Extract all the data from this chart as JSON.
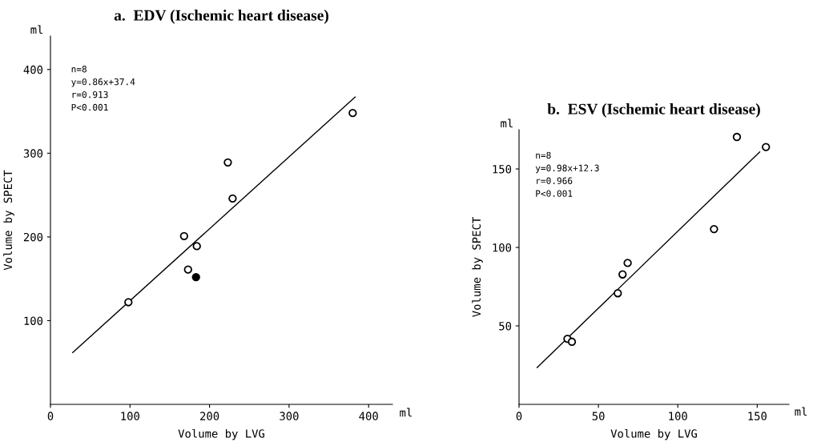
{
  "chart_data": [
    {
      "type": "scatter",
      "title": "a.  EDV (Ischemic heart disease)",
      "xlabel": "Volume by LVG",
      "ylabel": "Volume by SPECT",
      "annotations": [
        "n=8\ny=0.86x+37.4\nr=0.913\nP<0.001",
        "ml",
        "ml"
      ],
      "x": [
        98,
        168,
        184,
        173,
        183,
        223,
        229,
        380
      ],
      "series": [
        {
          "color": "#000000",
          "colors": [
            "#ffffff",
            "#ffffff",
            "#ffffff",
            "#ffffff",
            "#000000",
            "#ffffff",
            "#ffffff",
            "#ffffff"
          ],
          "values": [
            122,
            201,
            189,
            161,
            152,
            289,
            246,
            348
          ]
        },
        {
          "type": "line",
          "marker": "none",
          "color": "#000000",
          "x": [
            28,
            383
          ],
          "values": [
            62,
            367
          ]
        }
      ],
      "xlim": [
        0,
        430
      ],
      "ylim": [
        0,
        440
      ],
      "xticks": [
        0,
        100,
        200,
        300,
        400
      ],
      "yticks": [
        100,
        200,
        300,
        400
      ],
      "marker": "circle",
      "grid": false,
      "legend": false
    },
    {
      "type": "scatter",
      "title": "b.  ESV (Ischemic heart disease)",
      "xlabel": "Volume by LVG",
      "ylabel": "Volume by SPECT",
      "annotations": [
        "n=8\ny=0.98x+12.3\nr=0.966\nP<0.001",
        "ml",
        "ml"
      ],
      "x": [
        30.5,
        33.3,
        62.2,
        65.2,
        68.4,
        122.8,
        137.2,
        155.5
      ],
      "series": [
        {
          "color": "#000000",
          "colors": [
            "#ffffff",
            "#ffffff",
            "#ffffff",
            "#ffffff",
            "#ffffff",
            "#ffffff",
            "#ffffff",
            "#ffffff"
          ],
          "values": [
            41.8,
            39.9,
            70.8,
            82.8,
            90.1,
            111.7,
            170.4,
            164
          ]
        },
        {
          "type": "line",
          "marker": "none",
          "color": "#000000",
          "x": [
            11.4,
            151.6
          ],
          "values": [
            23.5,
            160.9
          ]
        }
      ],
      "xlim": [
        0,
        170
      ],
      "ylim": [
        0,
        175
      ],
      "xticks": [
        0,
        50,
        100,
        150
      ],
      "yticks": [
        50,
        100,
        150
      ],
      "marker": "circle",
      "grid": false,
      "legend": false
    }
  ]
}
